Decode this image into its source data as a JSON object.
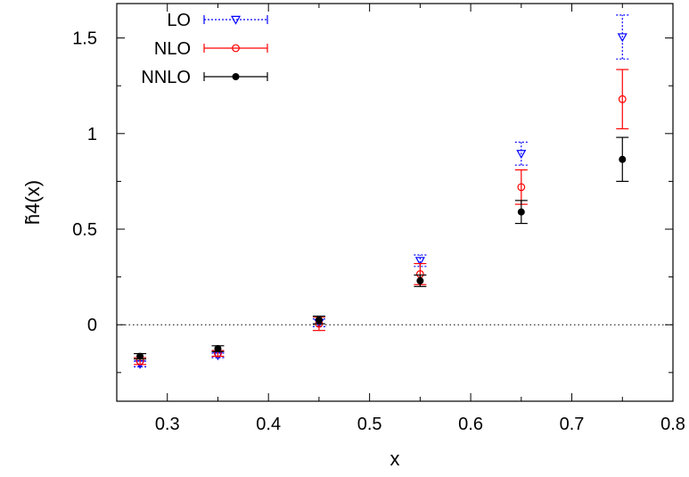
{
  "chart_data": {
    "type": "scatter",
    "title": "",
    "xlabel": "x",
    "ylabel": "h̃4(x)",
    "xlim": [
      0.25,
      0.8
    ],
    "ylim": [
      -0.4,
      1.68
    ],
    "x_ticks": [
      0.3,
      0.4,
      0.5,
      0.6,
      0.7,
      0.8
    ],
    "x_tick_labels": [
      "0.3",
      "0.4",
      "0.5",
      "0.6",
      "0.7",
      "0.8"
    ],
    "y_ticks": [
      0,
      0.5,
      1,
      1.5
    ],
    "y_tick_labels": [
      "0",
      "0.5",
      "1",
      "1.5"
    ],
    "reference_line": {
      "y": 0,
      "style": "dotted"
    },
    "grid": false,
    "legend_position": "top-left",
    "series": [
      {
        "name": "LO",
        "color": "#0000ff",
        "marker": "triangle-down-open",
        "line_style": "dotted",
        "points": [
          {
            "x": 0.273,
            "y": -0.205,
            "err": 0.015
          },
          {
            "x": 0.35,
            "y": -0.16,
            "err": 0.012
          },
          {
            "x": 0.45,
            "y": 0.01,
            "err": 0.02
          },
          {
            "x": 0.55,
            "y": 0.335,
            "err": 0.03
          },
          {
            "x": 0.65,
            "y": 0.895,
            "err": 0.06
          },
          {
            "x": 0.75,
            "y": 1.505,
            "err": 0.115
          }
        ]
      },
      {
        "name": "NLO",
        "color": "#ff0000",
        "marker": "circle-open",
        "line_style": "solid",
        "points": [
          {
            "x": 0.273,
            "y": -0.19,
            "err": 0.018
          },
          {
            "x": 0.35,
            "y": -0.15,
            "err": 0.015
          },
          {
            "x": 0.45,
            "y": 0.005,
            "err": 0.035
          },
          {
            "x": 0.55,
            "y": 0.265,
            "err": 0.055
          },
          {
            "x": 0.65,
            "y": 0.72,
            "err": 0.09
          },
          {
            "x": 0.75,
            "y": 1.18,
            "err": 0.155
          }
        ]
      },
      {
        "name": "NNLO",
        "color": "#000000",
        "marker": "circle-filled",
        "line_style": "solid",
        "points": [
          {
            "x": 0.273,
            "y": -0.165,
            "err": 0.014
          },
          {
            "x": 0.35,
            "y": -0.125,
            "err": 0.015
          },
          {
            "x": 0.45,
            "y": 0.025,
            "err": 0.02
          },
          {
            "x": 0.55,
            "y": 0.23,
            "err": 0.03
          },
          {
            "x": 0.65,
            "y": 0.59,
            "err": 0.06
          },
          {
            "x": 0.75,
            "y": 0.865,
            "err": 0.115
          }
        ]
      }
    ]
  }
}
